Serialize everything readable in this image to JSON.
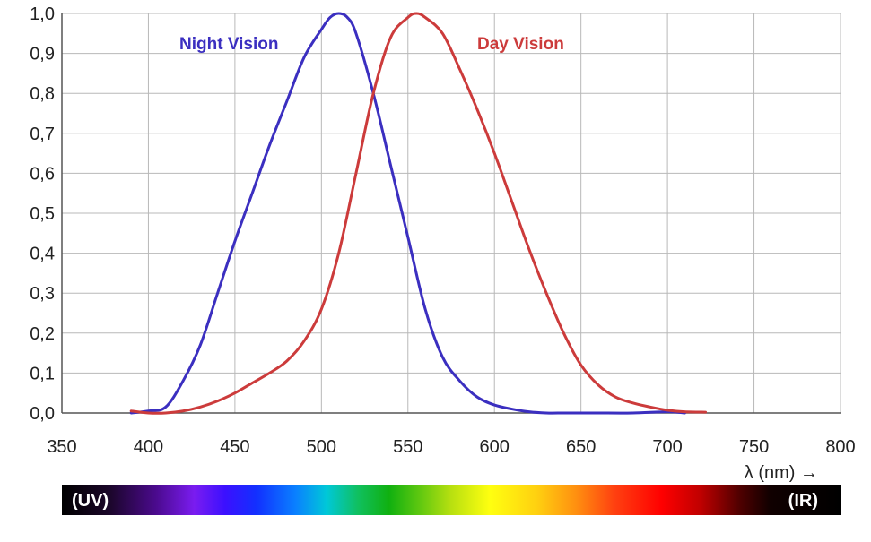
{
  "chart_data": {
    "type": "line",
    "xlabel": "λ (nm) →",
    "ylabel": "",
    "xlim": [
      350,
      800
    ],
    "ylim": [
      0,
      1.0
    ],
    "x_ticks": [
      "350",
      "400",
      "450",
      "500",
      "550",
      "600",
      "650",
      "700",
      "750",
      "800"
    ],
    "y_ticks": [
      "0,0",
      "0,1",
      "0,2",
      "0,3",
      "0,4",
      "0,5",
      "0,6",
      "0,7",
      "0,8",
      "0,9",
      "1,0"
    ],
    "grid": true,
    "series": [
      {
        "name": "Night Vision",
        "color": "#3b2fc0",
        "x": [
          390,
          400,
          410,
          420,
          430,
          440,
          450,
          460,
          470,
          480,
          490,
          500,
          505,
          510,
          515,
          520,
          530,
          540,
          550,
          560,
          570,
          580,
          590,
          600,
          610,
          620,
          630,
          640,
          650,
          660,
          680,
          700,
          710
        ],
        "y": [
          0.0,
          0.005,
          0.015,
          0.08,
          0.17,
          0.3,
          0.43,
          0.55,
          0.67,
          0.78,
          0.89,
          0.96,
          0.99,
          1.0,
          0.99,
          0.95,
          0.8,
          0.62,
          0.44,
          0.26,
          0.14,
          0.08,
          0.04,
          0.02,
          0.01,
          0.003,
          0.0,
          0.0,
          0.0,
          0.0,
          0.0,
          0.003,
          0.0
        ]
      },
      {
        "name": "Day Vision",
        "color": "#cc3b3b",
        "x": [
          390,
          400,
          410,
          420,
          430,
          440,
          450,
          460,
          470,
          480,
          490,
          500,
          510,
          520,
          530,
          540,
          550,
          555,
          560,
          570,
          580,
          590,
          600,
          610,
          620,
          630,
          640,
          650,
          660,
          670,
          680,
          690,
          700,
          710,
          722
        ],
        "y": [
          0.005,
          0.0,
          0.0,
          0.005,
          0.015,
          0.03,
          0.05,
          0.075,
          0.1,
          0.13,
          0.18,
          0.26,
          0.4,
          0.6,
          0.8,
          0.94,
          0.99,
          1.0,
          0.99,
          0.95,
          0.86,
          0.76,
          0.65,
          0.53,
          0.41,
          0.3,
          0.2,
          0.12,
          0.07,
          0.04,
          0.025,
          0.015,
          0.007,
          0.003,
          0.002
        ]
      }
    ],
    "spectrum_bar": {
      "left_label": "(UV)",
      "right_label": "(IR)"
    }
  }
}
